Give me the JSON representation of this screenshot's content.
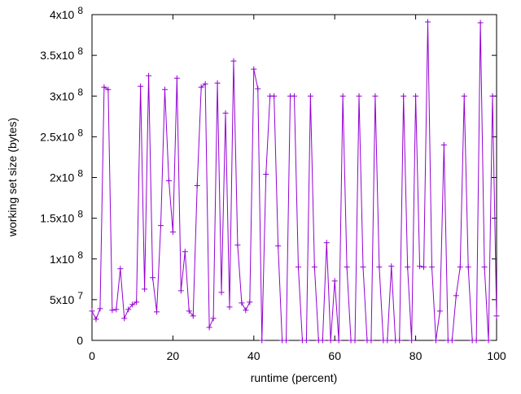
{
  "chart_data": {
    "type": "line",
    "xlabel": "runtime (percent)",
    "ylabel": "working set size (bytes)",
    "xlim": [
      0,
      100
    ],
    "ylim": [
      0,
      400000000
    ],
    "x_ticks": [
      {
        "value": 0,
        "label": "0"
      },
      {
        "value": 20,
        "label": "20"
      },
      {
        "value": 40,
        "label": "40"
      },
      {
        "value": 60,
        "label": "60"
      },
      {
        "value": 80,
        "label": "80"
      },
      {
        "value": 100,
        "label": "100"
      }
    ],
    "y_ticks": [
      {
        "value": 0,
        "mantissa": "0",
        "exponent": ""
      },
      {
        "value": 50000000,
        "mantissa": "5x10",
        "exponent": "7"
      },
      {
        "value": 100000000,
        "mantissa": "1x10",
        "exponent": "8"
      },
      {
        "value": 150000000,
        "mantissa": "1.5x10",
        "exponent": "8"
      },
      {
        "value": 200000000,
        "mantissa": "2x10",
        "exponent": "8"
      },
      {
        "value": 250000000,
        "mantissa": "2.5x10",
        "exponent": "8"
      },
      {
        "value": 300000000,
        "mantissa": "3x10",
        "exponent": "8"
      },
      {
        "value": 350000000,
        "mantissa": "3.5x10",
        "exponent": "8"
      },
      {
        "value": 400000000,
        "mantissa": "4x10",
        "exponent": "8"
      }
    ],
    "grid": false,
    "marker": "plus",
    "series": [
      {
        "color": "#9400d3",
        "points": [
          [
            0,
            36000000
          ],
          [
            1,
            26000000
          ],
          [
            2,
            39000000
          ],
          [
            3,
            311000000
          ],
          [
            4,
            308000000
          ],
          [
            5,
            37000000
          ],
          [
            6,
            38000000
          ],
          [
            7,
            88000000
          ],
          [
            8,
            27000000
          ],
          [
            9,
            38000000
          ],
          [
            10,
            44000000
          ],
          [
            11,
            47000000
          ],
          [
            12,
            312000000
          ],
          [
            13,
            63000000
          ],
          [
            14,
            325000000
          ],
          [
            15,
            77000000
          ],
          [
            16,
            35000000
          ],
          [
            17,
            141000000
          ],
          [
            18,
            308000000
          ],
          [
            19,
            196000000
          ],
          [
            20,
            133000000
          ],
          [
            21,
            322000000
          ],
          [
            22,
            61000000
          ],
          [
            23,
            109000000
          ],
          [
            24,
            36000000
          ],
          [
            25,
            30000000
          ],
          [
            26,
            190000000
          ],
          [
            27,
            311000000
          ],
          [
            28,
            315000000
          ],
          [
            29,
            16000000
          ],
          [
            30,
            27000000
          ],
          [
            31,
            316000000
          ],
          [
            32,
            59000000
          ],
          [
            33,
            279000000
          ],
          [
            34,
            41000000
          ],
          [
            35,
            343000000
          ],
          [
            36,
            117000000
          ],
          [
            37,
            46000000
          ],
          [
            38,
            37000000
          ],
          [
            39,
            47000000
          ],
          [
            40,
            333000000
          ],
          [
            41,
            309000000
          ],
          [
            42,
            0
          ],
          [
            43,
            204000000
          ],
          [
            44,
            300000000
          ],
          [
            45,
            300000000
          ],
          [
            46,
            116000000
          ],
          [
            47,
            0
          ],
          [
            48,
            0
          ],
          [
            49,
            300000000
          ],
          [
            50,
            300000000
          ],
          [
            51,
            90000000
          ],
          [
            52,
            0
          ],
          [
            53,
            0
          ],
          [
            54,
            300000000
          ],
          [
            55,
            90000000
          ],
          [
            56,
            0
          ],
          [
            57,
            0
          ],
          [
            58,
            120000000
          ],
          [
            59,
            0
          ],
          [
            60,
            73000000
          ],
          [
            61,
            0
          ],
          [
            62,
            300000000
          ],
          [
            63,
            90000000
          ],
          [
            64,
            0
          ],
          [
            65,
            0
          ],
          [
            66,
            300000000
          ],
          [
            67,
            90000000
          ],
          [
            68,
            0
          ],
          [
            69,
            0
          ],
          [
            70,
            300000000
          ],
          [
            71,
            90000000
          ],
          [
            72,
            0
          ],
          [
            73,
            0
          ],
          [
            74,
            91000000
          ],
          [
            75,
            0
          ],
          [
            76,
            0
          ],
          [
            77,
            300000000
          ],
          [
            78,
            90000000
          ],
          [
            79,
            0
          ],
          [
            80,
            300000000
          ],
          [
            81,
            91000000
          ],
          [
            82,
            90000000
          ],
          [
            83,
            391000000
          ],
          [
            84,
            90000000
          ],
          [
            85,
            0
          ],
          [
            86,
            36000000
          ],
          [
            87,
            240000000
          ],
          [
            88,
            0
          ],
          [
            89,
            0
          ],
          [
            90,
            55000000
          ],
          [
            91,
            90000000
          ],
          [
            92,
            300000000
          ],
          [
            93,
            90000000
          ],
          [
            94,
            0
          ],
          [
            95,
            0
          ],
          [
            96,
            390000000
          ],
          [
            97,
            90000000
          ],
          [
            98,
            0
          ],
          [
            99,
            300000000
          ],
          [
            100,
            30000000
          ]
        ]
      }
    ]
  }
}
